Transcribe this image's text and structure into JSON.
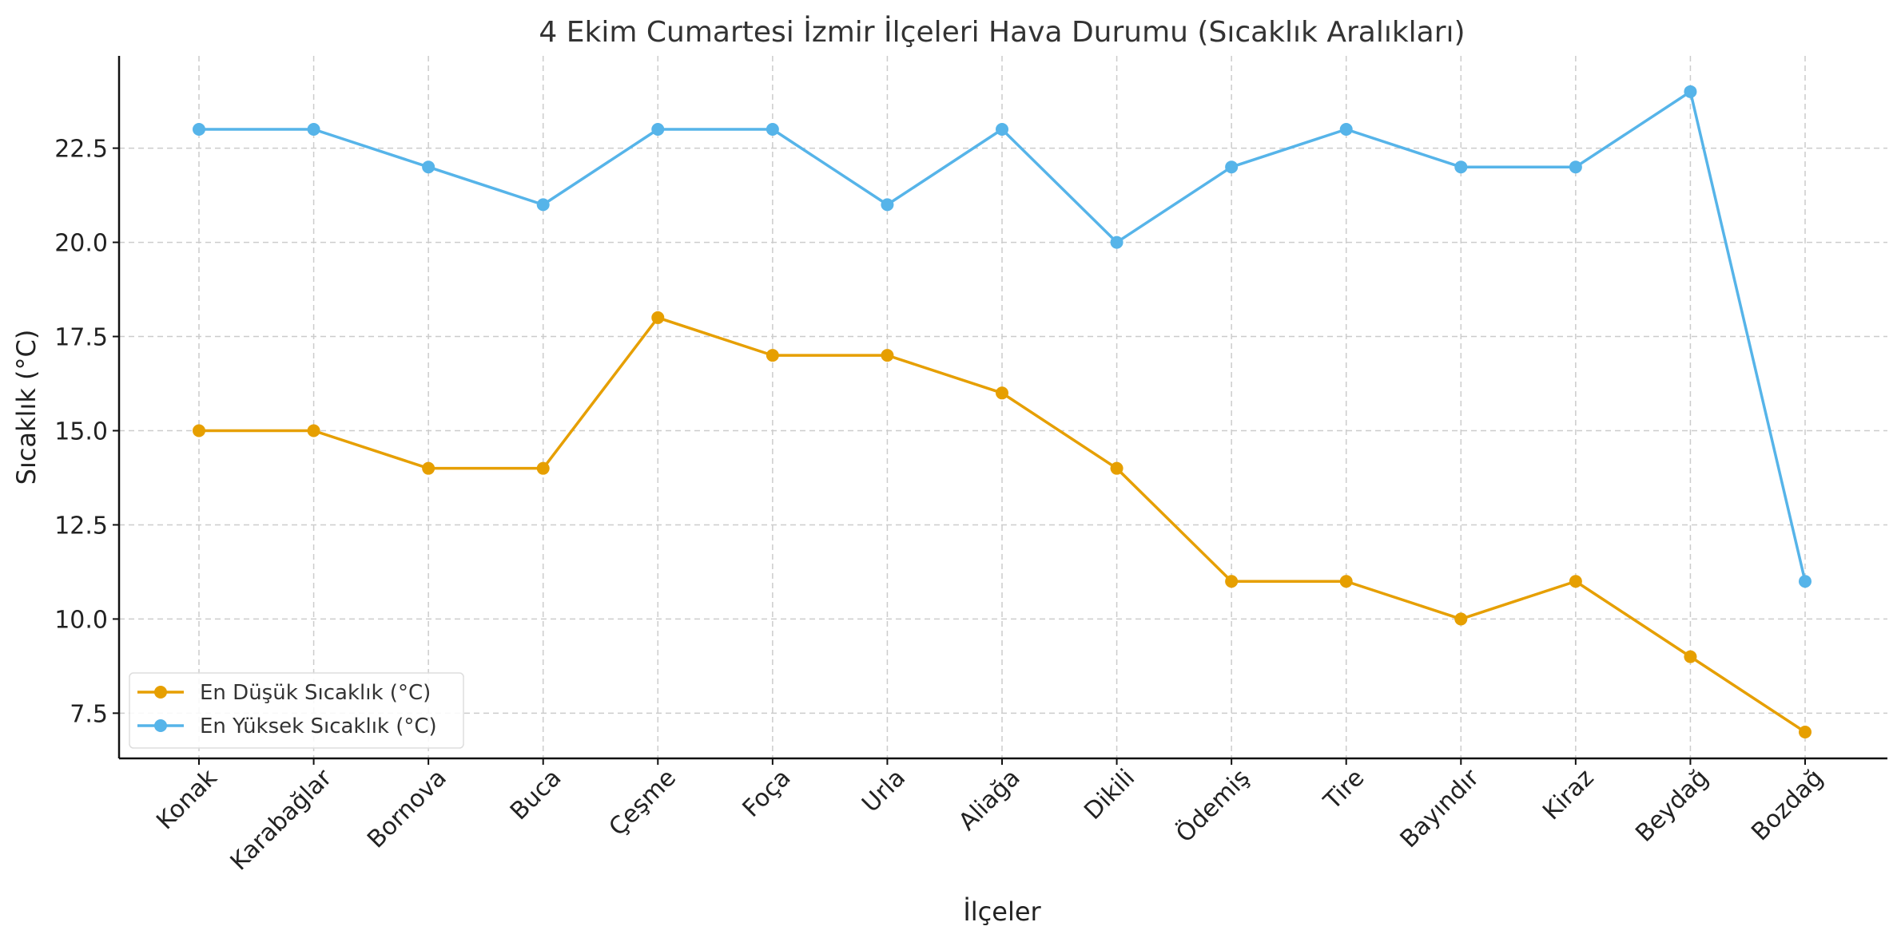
{
  "chart_data": {
    "type": "line",
    "title": "4 Ekim Cumartesi İzmir İlçeleri Hava Durumu (Sıcaklık Aralıkları)",
    "xlabel": "İlçeler",
    "ylabel": "Sıcaklık (°C)",
    "categories": [
      "Konak",
      "Karabağlar",
      "Bornova",
      "Buca",
      "Çeşme",
      "Foça",
      "Urla",
      "Aliağa",
      "Dikili",
      "Ödemiş",
      "Tire",
      "Bayındır",
      "Kiraz",
      "Beydağ",
      "Bozdağ"
    ],
    "yticks": [
      "7.5",
      "10.0",
      "12.5",
      "15.0",
      "17.5",
      "20.0",
      "22.5"
    ],
    "ylim": [
      6.3,
      24.95
    ],
    "grid": true,
    "legend_position": "lower-left",
    "series": [
      {
        "name": "En Düşük Sıcaklık (°C)",
        "color": "#E69F00",
        "values": [
          15,
          15,
          14,
          14,
          18,
          17,
          17,
          16,
          14,
          11,
          11,
          10,
          11,
          9,
          7
        ]
      },
      {
        "name": "En Yüksek Sıcaklık (°C)",
        "color": "#56B4E9",
        "values": [
          23,
          23,
          22,
          21,
          23,
          23,
          21,
          23,
          20,
          22,
          23,
          22,
          22,
          24,
          11
        ]
      }
    ]
  }
}
